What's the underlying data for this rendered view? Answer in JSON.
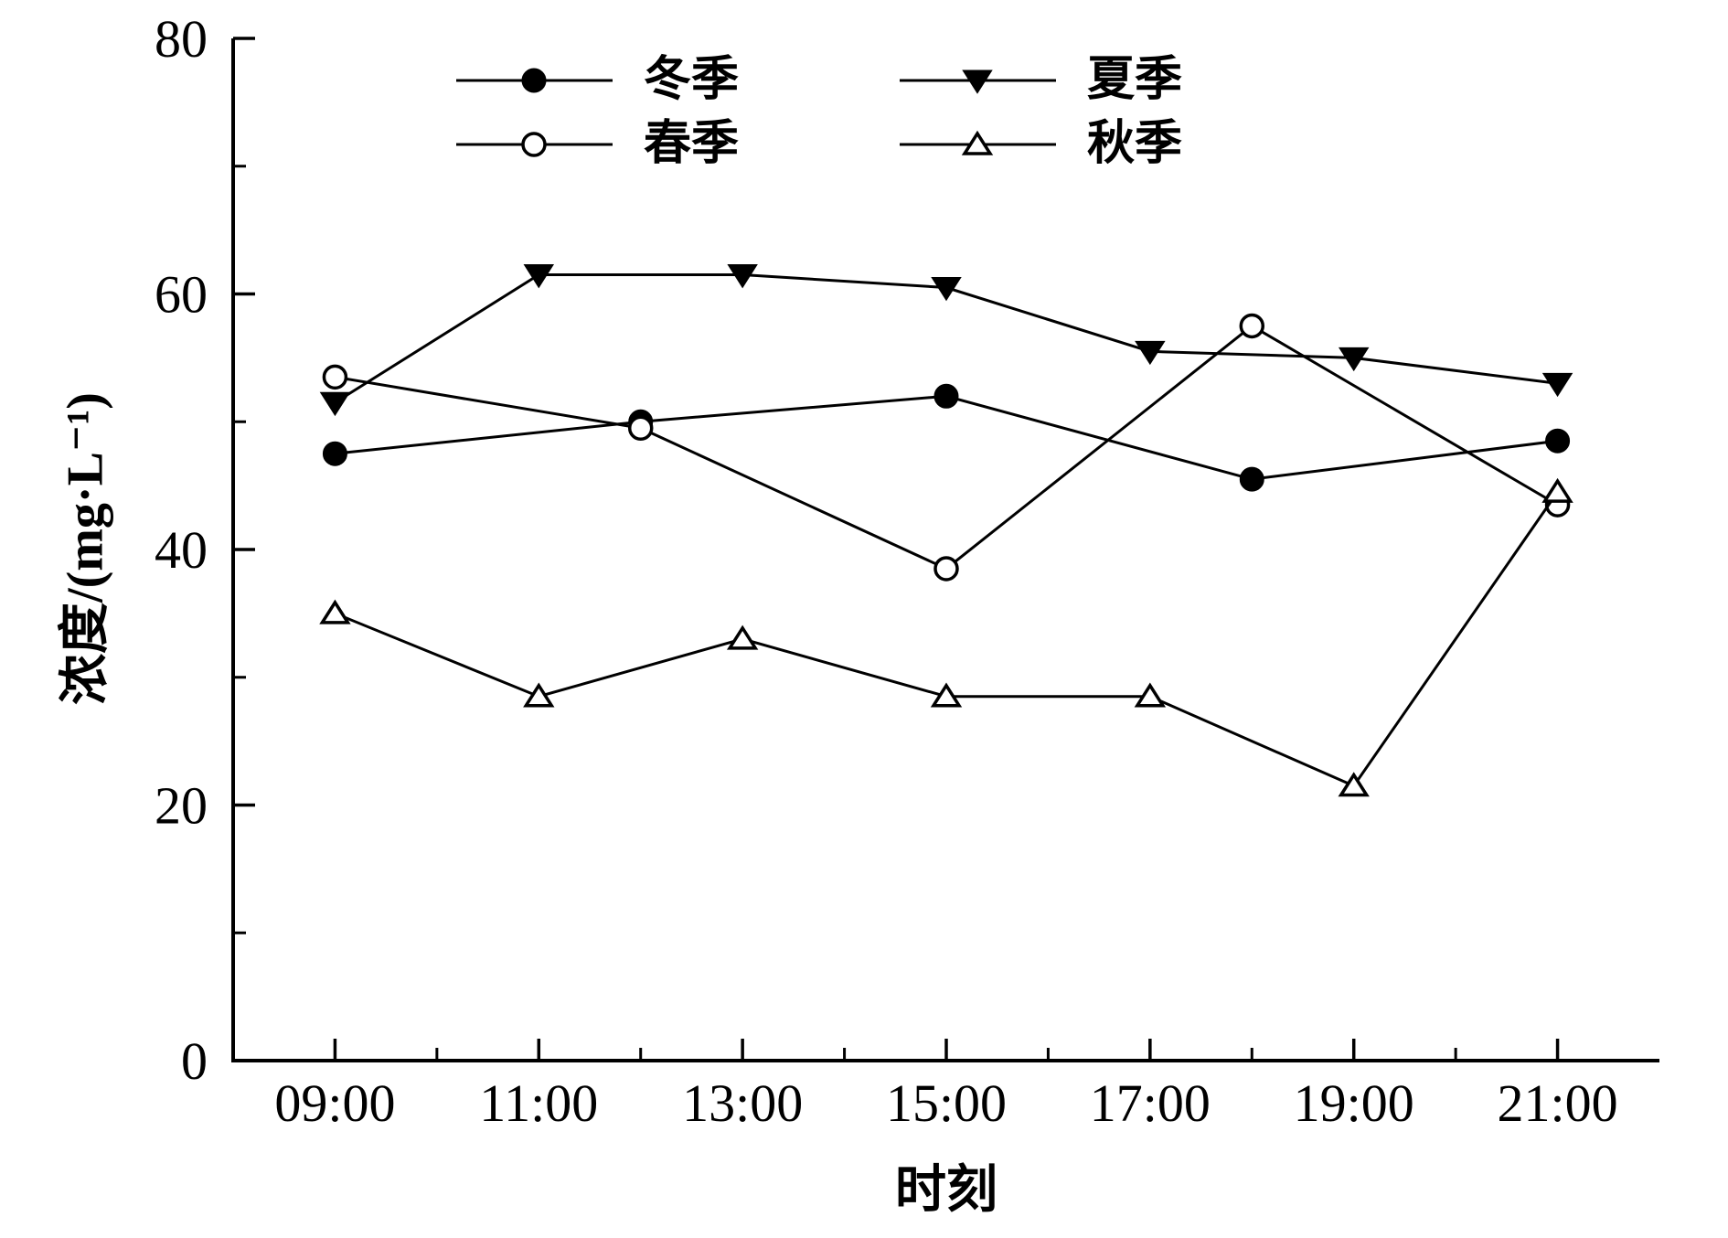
{
  "chart_data": {
    "type": "line",
    "title": "",
    "xlabel": "时刻",
    "ylabel": "浓度/(mg·L⁻¹)",
    "xlim": [
      8,
      22
    ],
    "ylim": [
      0,
      80
    ],
    "x_major_ticks": [
      9,
      11,
      13,
      15,
      17,
      19,
      21
    ],
    "x_tick_labels": [
      "09:00",
      "11:00",
      "13:00",
      "15:00",
      "17:00",
      "19:00",
      "21:00"
    ],
    "x_minor_ticks": [
      10,
      12,
      14,
      16,
      18,
      20
    ],
    "y_major_ticks": [
      0,
      20,
      40,
      60,
      80
    ],
    "y_tick_labels": [
      "0",
      "20",
      "40",
      "60",
      "80"
    ],
    "y_minor_ticks": [
      10,
      30,
      50,
      70
    ],
    "grid": false,
    "legend_position": "top-inside",
    "line_color": "#000000",
    "background_color": "#ffffff",
    "series": [
      {
        "id": "winter",
        "name": "冬季",
        "marker": "circle-filled",
        "x": [
          9,
          12,
          15,
          18,
          21
        ],
        "x_labels": [
          "09:00",
          "12:00",
          "15:00",
          "18:00",
          "21:00"
        ],
        "y": [
          47.5,
          50,
          52,
          45.5,
          48.5
        ]
      },
      {
        "id": "spring",
        "name": "春季",
        "marker": "circle-open",
        "x": [
          9,
          12,
          15,
          18,
          21
        ],
        "x_labels": [
          "09:00",
          "12:00",
          "15:00",
          "18:00",
          "21:00"
        ],
        "y": [
          53.5,
          49.5,
          38.5,
          57.5,
          43.5
        ]
      },
      {
        "id": "summer",
        "name": "夏季",
        "marker": "triangle-down-filled",
        "x": [
          9,
          11,
          13,
          15,
          17,
          19,
          21
        ],
        "x_labels": [
          "09:00",
          "11:00",
          "13:00",
          "15:00",
          "17:00",
          "19:00",
          "21:00"
        ],
        "y": [
          51.5,
          61.5,
          61.5,
          60.5,
          55.5,
          55,
          53
        ]
      },
      {
        "id": "autumn",
        "name": "秋季",
        "marker": "triangle-up-open",
        "x": [
          9,
          11,
          13,
          15,
          17,
          19,
          21
        ],
        "x_labels": [
          "09:00",
          "11:00",
          "13:00",
          "15:00",
          "17:00",
          "19:00",
          "21:00"
        ],
        "y": [
          35,
          28.5,
          33,
          28.5,
          28.5,
          21.5,
          44.5
        ]
      }
    ]
  }
}
